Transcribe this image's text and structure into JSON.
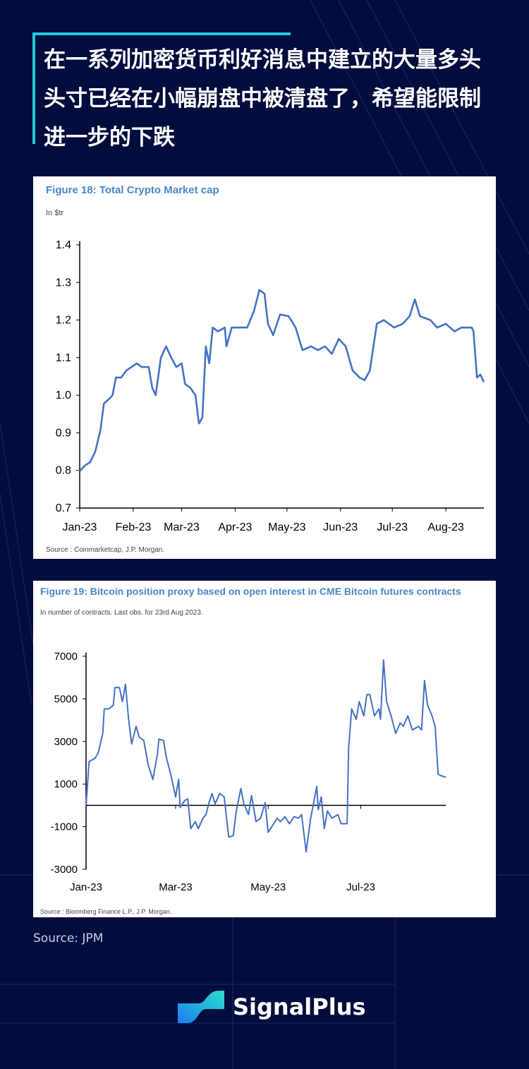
{
  "header": {
    "title": "在一系列加密货币利好消息中建立的大量多头头寸已经在小幅崩盘中被清盘了，希望能限制进一步的下跌"
  },
  "footer": {
    "source": "Source: JPM",
    "brand": "SignalPlus"
  },
  "colors": {
    "line": "#4472c4",
    "accent": "#22c8d8",
    "background": "#030d3d"
  },
  "chart_data": [
    {
      "type": "line",
      "title": "Figure 18: Total Crypto Market cap",
      "subtitle": "In $tr",
      "source": "Source : Coinmarketcap, J.P. Morgan.",
      "ylim": [
        0.7,
        1.4
      ],
      "yticks": [
        "1.4",
        "1.3",
        "1.2",
        "1.1",
        "1.0",
        "0.9",
        "0.8",
        "0.7"
      ],
      "xunit": "days since 1 Jan 2023",
      "xlim": [
        0,
        234
      ],
      "xticks": [
        {
          "label": "Jan-23",
          "day": 0
        },
        {
          "label": "Feb-23",
          "day": 31
        },
        {
          "label": "Mar-23",
          "day": 59
        },
        {
          "label": "Apr-23",
          "day": 90
        },
        {
          "label": "May-23",
          "day": 120
        },
        {
          "label": "Jun-23",
          "day": 151
        },
        {
          "label": "Jul-23",
          "day": 181
        },
        {
          "label": "Aug-23",
          "day": 212
        }
      ],
      "series": [
        {
          "name": "Total Crypto Market cap",
          "x": [
            0,
            3,
            6,
            9,
            12,
            14,
            17,
            19,
            21,
            24,
            27,
            30,
            33,
            36,
            40,
            42,
            44,
            47,
            50,
            53,
            56,
            59,
            61,
            64,
            67,
            69,
            71,
            73,
            75,
            77,
            80,
            84,
            85,
            88,
            91,
            97,
            101,
            104,
            107,
            109,
            112,
            116,
            121,
            125,
            129,
            134,
            138,
            142,
            146,
            150,
            154,
            158,
            162,
            165,
            168,
            172,
            176,
            182,
            187,
            191,
            194,
            197,
            203,
            207,
            212,
            217,
            221,
            227,
            228,
            230,
            232,
            234
          ],
          "values": [
            0.798,
            0.813,
            0.822,
            0.85,
            0.907,
            0.978,
            0.99,
            1.0,
            1.047,
            1.047,
            1.066,
            1.075,
            1.085,
            1.075,
            1.075,
            1.02,
            1.0,
            1.1,
            1.13,
            1.1,
            1.075,
            1.085,
            1.03,
            1.02,
            1.0,
            0.925,
            0.94,
            1.13,
            1.085,
            1.18,
            1.17,
            1.18,
            1.13,
            1.18,
            1.18,
            1.18,
            1.225,
            1.28,
            1.27,
            1.19,
            1.16,
            1.215,
            1.21,
            1.18,
            1.12,
            1.13,
            1.12,
            1.13,
            1.11,
            1.15,
            1.13,
            1.066,
            1.047,
            1.04,
            1.066,
            1.19,
            1.2,
            1.18,
            1.19,
            1.21,
            1.255,
            1.21,
            1.2,
            1.18,
            1.19,
            1.17,
            1.18,
            1.18,
            1.17,
            1.047,
            1.055,
            1.035
          ]
        }
      ]
    },
    {
      "type": "line",
      "title": "Figure 19: Bitcoin position proxy based on open interest in CME Bitcoin futures contracts",
      "subtitle": "In number of contracts. Last obs. for 23rd Aug 2023.",
      "source": "Source : Bloomberg Finance L.P., J.P. Morgan.",
      "ylim": [
        -3000,
        7000
      ],
      "yticks": [
        "7000",
        "5000",
        "3000",
        "1000",
        "-1000",
        "-3000"
      ],
      "xunit": "days since 1 Jan 2023",
      "xlim": [
        0,
        237
      ],
      "xticks": [
        {
          "label": "Jan-23",
          "day": 0
        },
        {
          "label": "Mar-23",
          "day": 59
        },
        {
          "label": "May-23",
          "day": 120
        },
        {
          "label": "Jul-23",
          "day": 181
        }
      ],
      "series": [
        {
          "name": "Bitcoin position proxy",
          "x": [
            0,
            2,
            6,
            8,
            11,
            12,
            15,
            18,
            19,
            22,
            24,
            26,
            28,
            30,
            33,
            35,
            38,
            41,
            44,
            47,
            48,
            51,
            53,
            56,
            59,
            61,
            62,
            65,
            67,
            69,
            72,
            74,
            77,
            79,
            81,
            83,
            85,
            88,
            91,
            94,
            97,
            99,
            102,
            104,
            107,
            109,
            112,
            115,
            118,
            120,
            123,
            126,
            128,
            131,
            134,
            137,
            140,
            142,
            145,
            148,
            152,
            153,
            155,
            157,
            159,
            162,
            166,
            168,
            172,
            173,
            175,
            178,
            180,
            183,
            185,
            187,
            190,
            193,
            194,
            196,
            198,
            201,
            204,
            207,
            209,
            212,
            215,
            219,
            221,
            223,
            225,
            228,
            230,
            232,
            234,
            237
          ],
          "values": [
            0,
            2050,
            2220,
            2450,
            3380,
            4530,
            4530,
            4700,
            5530,
            5530,
            4870,
            5690,
            4040,
            2880,
            3710,
            3210,
            3050,
            1890,
            1220,
            2380,
            3110,
            3050,
            2220,
            1390,
            400,
            1220,
            -100,
            230,
            300,
            -1090,
            -760,
            -1090,
            -600,
            -430,
            130,
            560,
            70,
            560,
            400,
            -1490,
            -1420,
            -260,
            790,
            70,
            -430,
            460,
            -760,
            -600,
            130,
            -1260,
            -930,
            -600,
            -760,
            -530,
            -860,
            -530,
            -600,
            -430,
            -2180,
            -600,
            890,
            -200,
            400,
            -1090,
            -260,
            -600,
            -430,
            -860,
            -860,
            2710,
            4530,
            4040,
            4870,
            4200,
            5200,
            5200,
            4200,
            4530,
            4040,
            6820,
            4870,
            4200,
            3380,
            3870,
            3710,
            4200,
            3540,
            3710,
            3540,
            5860,
            4700,
            4200,
            3710,
            1460,
            1390,
            1320
          ]
        }
      ]
    }
  ]
}
